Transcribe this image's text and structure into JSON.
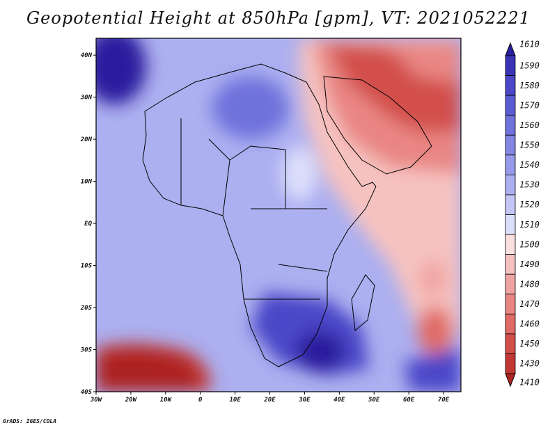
{
  "title": "Geopotential Height at 850hPa [gpm], VT: 2021052221",
  "credit": "GrADS: IGES/COLA",
  "map": {
    "region": "Africa",
    "lat_labels": [
      "40N",
      "30N",
      "20N",
      "10N",
      "EQ",
      "10S",
      "20S",
      "30S",
      "40S"
    ],
    "lon_labels": [
      "30W",
      "20W",
      "10W",
      "0",
      "10E",
      "20E",
      "30E",
      "40E",
      "50E",
      "60E",
      "70E"
    ],
    "lat_range": [
      -40,
      44
    ],
    "lon_range": [
      -30,
      75
    ]
  },
  "colorbar": {
    "levels": [
      "1610",
      "1590",
      "1580",
      "1570",
      "1560",
      "1550",
      "1540",
      "1530",
      "1520",
      "1510",
      "1500",
      "1490",
      "1480",
      "1470",
      "1460",
      "1450",
      "1430",
      "1410"
    ],
    "colors": [
      "#2a1f9e",
      "#3a33b5",
      "#4b47c8",
      "#5c5cd2",
      "#6f72db",
      "#8385e3",
      "#979aea",
      "#acaff0",
      "#c3c6f6",
      "#dcdffb",
      "#fbe0df",
      "#f6c2c0",
      "#f0a4a1",
      "#e98683",
      "#e06a66",
      "#d24f4b",
      "#c23733",
      "#ad2421"
    ]
  }
}
